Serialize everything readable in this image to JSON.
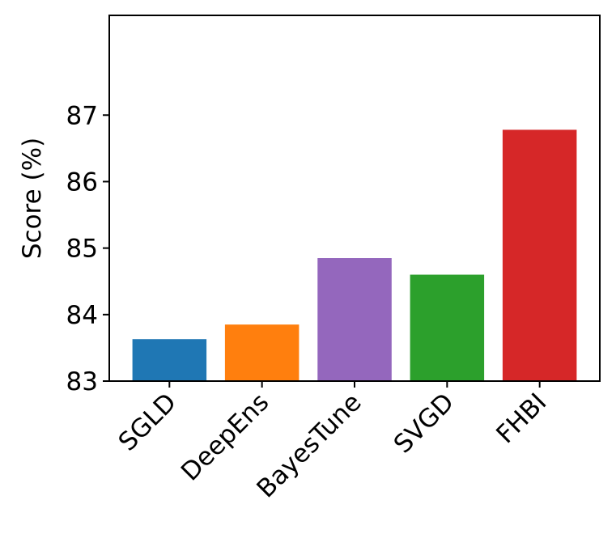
{
  "chart_data": {
    "type": "bar",
    "categories": [
      "SGLD",
      "DeepEns",
      "BayesTune",
      "SVGD",
      "FHBI"
    ],
    "values": [
      83.63,
      83.85,
      84.85,
      84.6,
      86.78
    ],
    "colors": [
      "#1f77b4",
      "#ff7f0e",
      "#9467bd",
      "#2ca02c",
      "#d62728"
    ],
    "title": "",
    "xlabel": "",
    "ylabel": "Score (%)",
    "ylim": [
      83,
      88.5
    ],
    "yticks": [
      "83",
      "84",
      "85",
      "86",
      "87"
    ],
    "grid": false,
    "legend": "none"
  }
}
